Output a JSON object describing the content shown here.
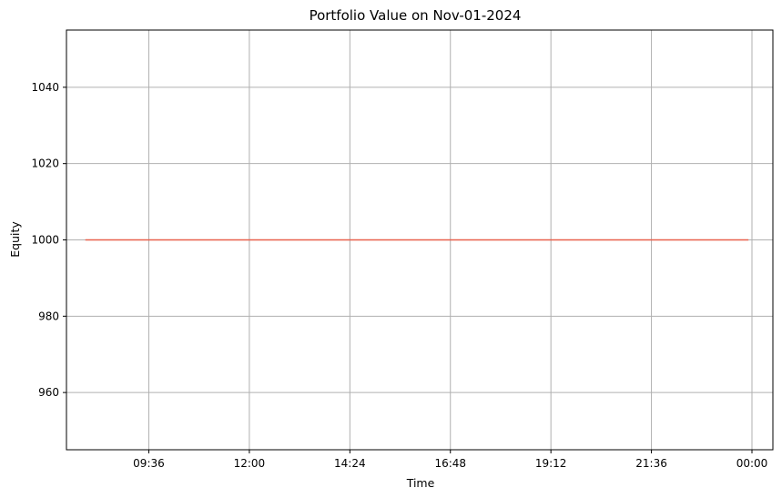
{
  "chart_data": {
    "type": "line",
    "title": "Portfolio Value on Nov-01-2024",
    "xlabel": "Time",
    "ylabel": "Equity",
    "x_ticks": [
      "09:36",
      "12:00",
      "14:24",
      "16:48",
      "19:12",
      "21:36",
      "00:00"
    ],
    "y_ticks": [
      960,
      980,
      1000,
      1020,
      1040
    ],
    "ylim": [
      945,
      1055
    ],
    "xlim": [
      "07:38",
      "00:30"
    ],
    "grid": true,
    "series": [
      {
        "color": "#e8604c",
        "x": [
          "08:05",
          "23:55"
        ],
        "values": [
          1000,
          1000
        ]
      }
    ]
  }
}
